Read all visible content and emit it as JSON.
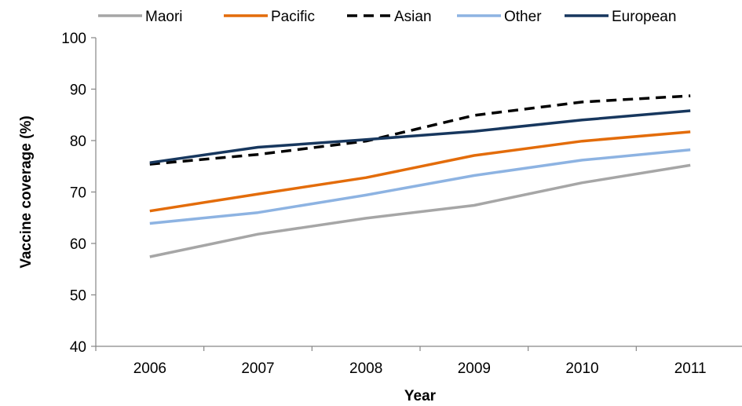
{
  "chart_data": {
    "type": "line",
    "categories": [
      "2006",
      "2007",
      "2008",
      "2009",
      "2010",
      "2011"
    ],
    "x": [
      2006,
      2007,
      2008,
      2009,
      2010,
      2011
    ],
    "xlabel": "Year",
    "ylabel": "Vaccine coverage (%)",
    "ylim": [
      40,
      100
    ],
    "yticks": [
      40,
      50,
      60,
      70,
      80,
      90,
      100
    ],
    "grid": false,
    "legend_position": "top",
    "series": [
      {
        "name": "Maori",
        "color": "#a6a6a6",
        "dash": "solid",
        "values": [
          57.4,
          61.8,
          64.9,
          67.4,
          71.8,
          75.2
        ]
      },
      {
        "name": "Pacific",
        "color": "#e36c0a",
        "dash": "solid",
        "values": [
          66.3,
          69.6,
          72.8,
          77.1,
          79.9,
          81.7
        ]
      },
      {
        "name": "Asian",
        "color": "#000000",
        "dash": "dashed",
        "values": [
          75.4,
          77.3,
          79.9,
          84.9,
          87.5,
          88.7
        ]
      },
      {
        "name": "Other",
        "color": "#8db3e2",
        "dash": "solid",
        "values": [
          63.9,
          66.0,
          69.4,
          73.2,
          76.2,
          78.2
        ]
      },
      {
        "name": "European",
        "color": "#17375e",
        "dash": "solid",
        "values": [
          75.7,
          78.7,
          80.2,
          81.8,
          84.0,
          85.8
        ]
      }
    ]
  }
}
